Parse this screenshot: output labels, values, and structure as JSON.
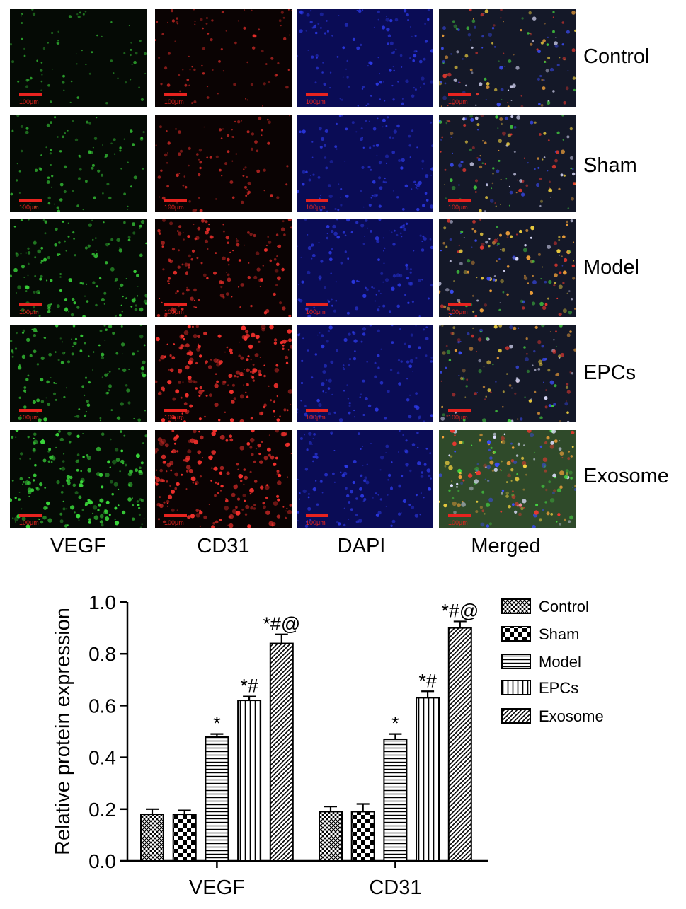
{
  "figure": {
    "rows": [
      "Control",
      "Sham",
      "Model",
      "EPCs",
      "Exosome"
    ],
    "columns": [
      "VEGF",
      "CD31",
      "DAPI",
      "Merged"
    ],
    "scale_bar_label": "100μm",
    "column_colors": {
      "VEGF": "#39d43a",
      "CD31": "#f0302c",
      "DAPI": "#2e3cf0"
    },
    "panel_background": {
      "VEGF": "#050a05",
      "CD31": "#0a0303",
      "DAPI": "#0a0c55",
      "Merged": "#141828"
    },
    "signal_intensity": {
      "VEGF": [
        0.18,
        0.3,
        0.62,
        0.5,
        0.85
      ],
      "CD31": [
        0.25,
        0.3,
        0.6,
        0.85,
        0.9
      ],
      "DAPI": [
        0.45,
        0.45,
        0.5,
        0.45,
        0.5
      ],
      "Merged": [
        0.55,
        0.55,
        0.65,
        0.6,
        0.85
      ]
    }
  },
  "chart_data": {
    "type": "bar",
    "categories": [
      "VEGF",
      "CD31"
    ],
    "ylabel": "Relative protein expression",
    "xlabel": "",
    "ylim": [
      0,
      1.0
    ],
    "yticks": [
      "0.0",
      "0.2",
      "0.4",
      "0.6",
      "0.8",
      "1.0"
    ],
    "grid": false,
    "legend_position": "right",
    "series": [
      {
        "name": "Control",
        "pattern": "crosshatch",
        "values": [
          0.18,
          0.19
        ],
        "errors": [
          0.02,
          0.02
        ],
        "annotations": [
          "",
          ""
        ]
      },
      {
        "name": "Sham",
        "pattern": "checker",
        "values": [
          0.18,
          0.19
        ],
        "errors": [
          0.015,
          0.03
        ],
        "annotations": [
          "",
          ""
        ]
      },
      {
        "name": "Model",
        "pattern": "horizontal",
        "values": [
          0.48,
          0.47
        ],
        "errors": [
          0.01,
          0.02
        ],
        "annotations": [
          "*",
          "*"
        ]
      },
      {
        "name": "EPCs",
        "pattern": "vertical",
        "values": [
          0.62,
          0.63
        ],
        "errors": [
          0.015,
          0.025
        ],
        "annotations": [
          "*#",
          "*#"
        ]
      },
      {
        "name": "Exosome",
        "pattern": "diagonal",
        "values": [
          0.84,
          0.9
        ],
        "errors": [
          0.035,
          0.025
        ],
        "annotations": [
          "*#@",
          "*#@"
        ]
      }
    ]
  }
}
